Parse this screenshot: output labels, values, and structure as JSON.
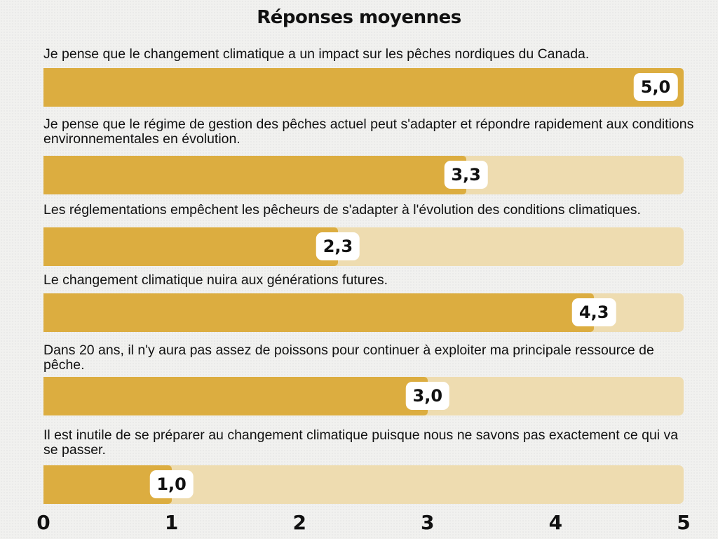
{
  "chart_data": {
    "type": "bar",
    "orientation": "horizontal",
    "title": "Réponses moyennes",
    "xlim": [
      0,
      5
    ],
    "ticks": [
      "0",
      "1",
      "2",
      "3",
      "4",
      "5"
    ],
    "grid": false,
    "colors": {
      "fill": "#dcad40",
      "track": "#eedcb0",
      "label_bg": "#ffffff"
    },
    "categories": [
      "Je pense que le changement climatique a un impact sur les pêches nordiques du Canada.",
      "Je pense que le régime de gestion des pêches actuel peut s'adapter et répondre rapidement aux conditions environnementales en évolution.",
      "Les réglementations empêchent les pêcheurs de s'adapter à l'évolution des conditions climatiques.",
      "Le changement climatique nuira aux générations futures.",
      "Dans 20 ans, il n'y aura pas assez de poissons pour continuer à exploiter ma principale ressource de pêche.",
      "Il est inutile de se préparer au changement climatique puisque nous ne savons pas exactement ce qui va se passer."
    ],
    "values": [
      5.0,
      3.3,
      2.3,
      4.3,
      3.0,
      1.0
    ],
    "value_labels": [
      "5,0",
      "3,3",
      "2,3",
      "4,3",
      "3,0",
      "1,0"
    ]
  }
}
